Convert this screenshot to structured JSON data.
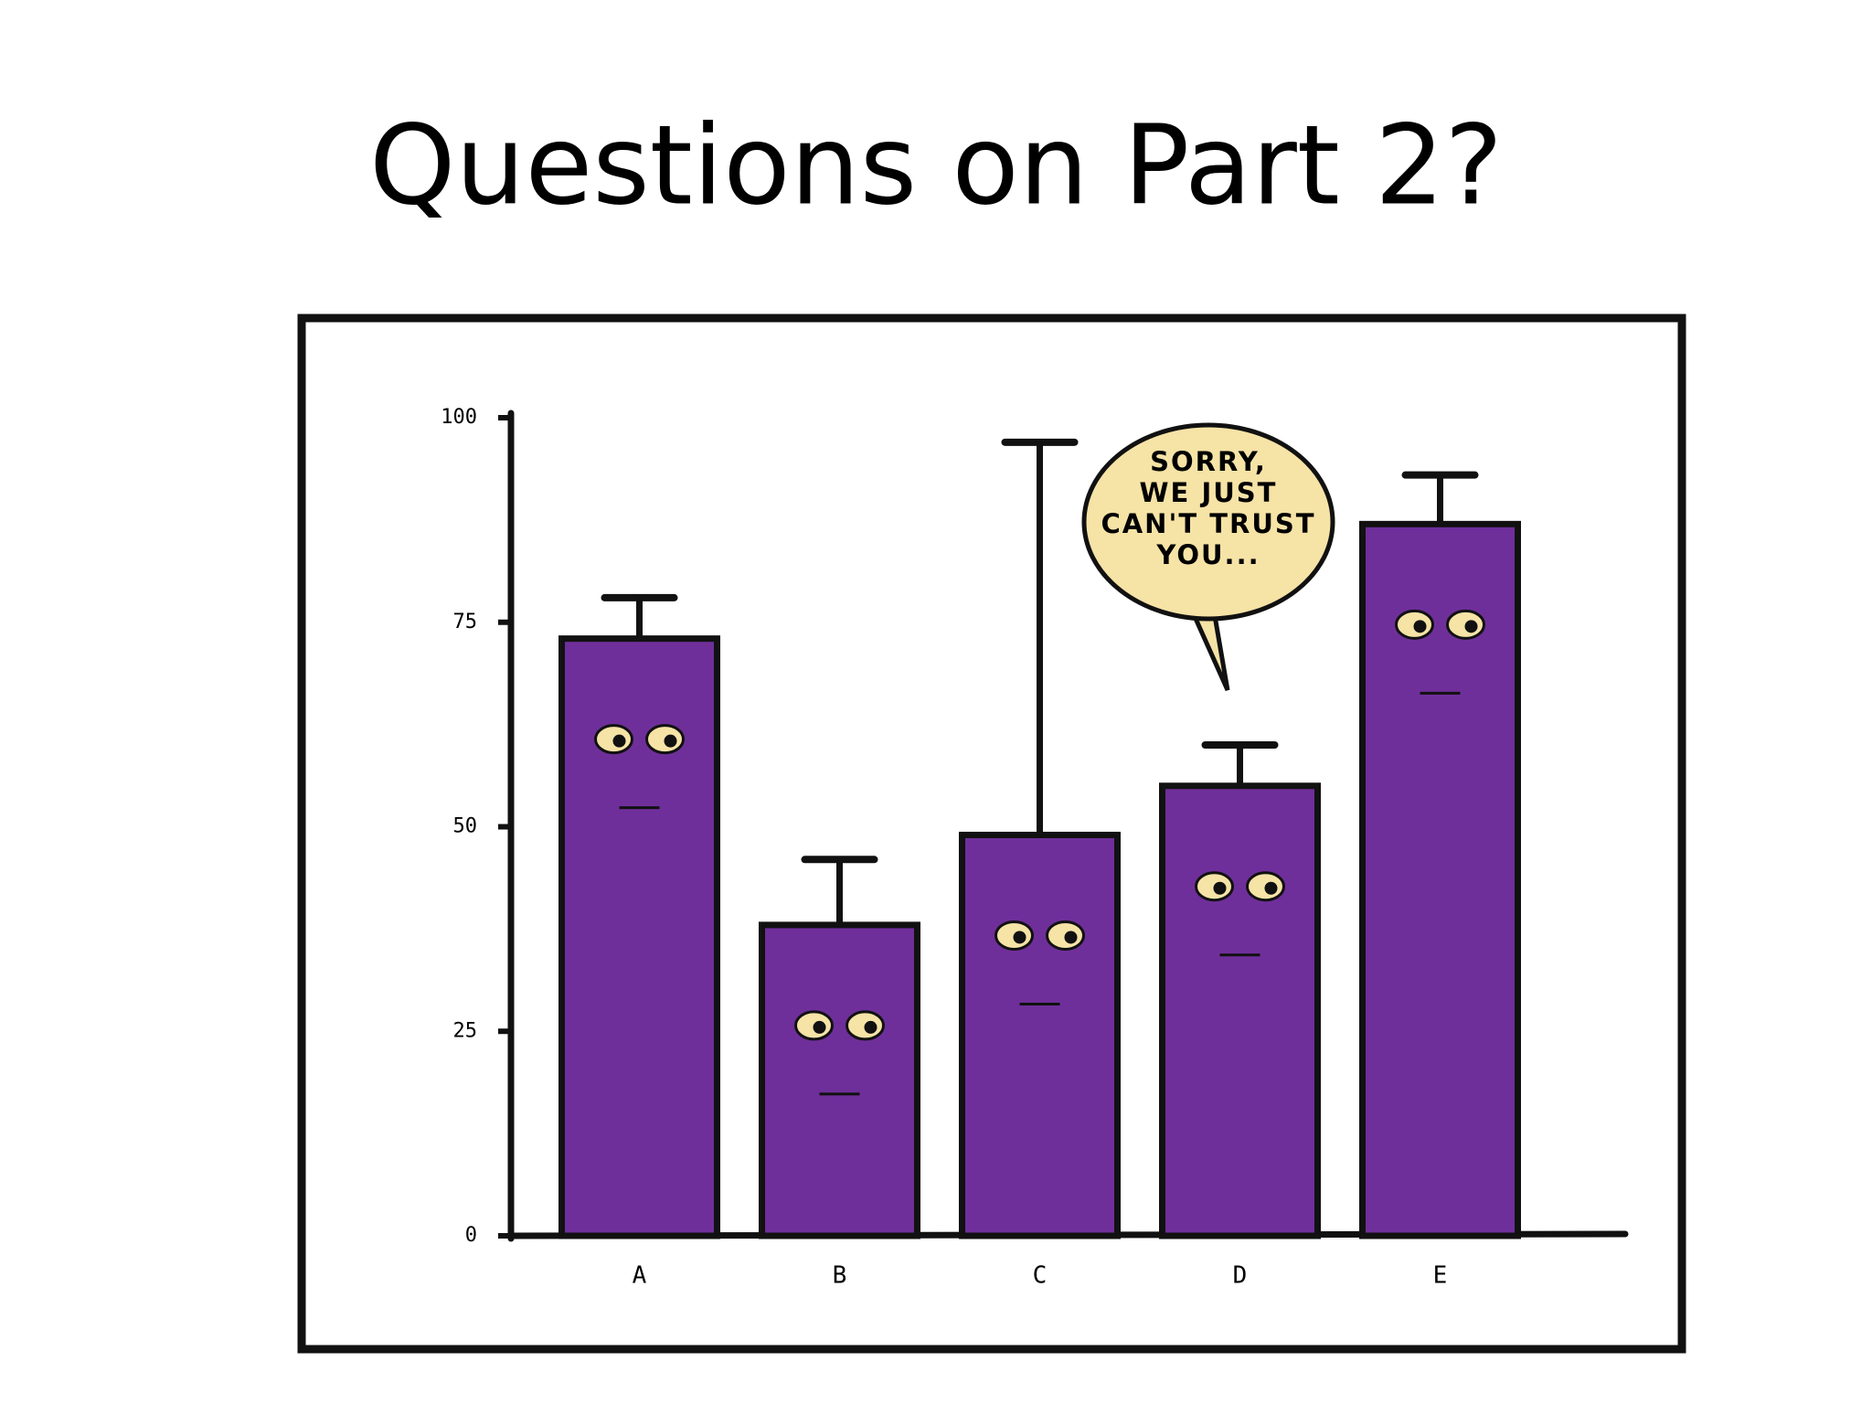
{
  "chart_data": {
    "type": "bar",
    "title": "Questions on Part 2?",
    "categories": [
      "A",
      "B",
      "C",
      "D",
      "E"
    ],
    "values": [
      73,
      38,
      49,
      55,
      87
    ],
    "errors": [
      5,
      8,
      48,
      5,
      6
    ],
    "color": "#6f2f9a",
    "ylim": [
      0,
      100
    ],
    "yticks": [
      0,
      25,
      50,
      75,
      100
    ],
    "annotation": [
      "SORRY,",
      "WE JUST",
      "CAN'T TRUST",
      "YOU..."
    ]
  }
}
